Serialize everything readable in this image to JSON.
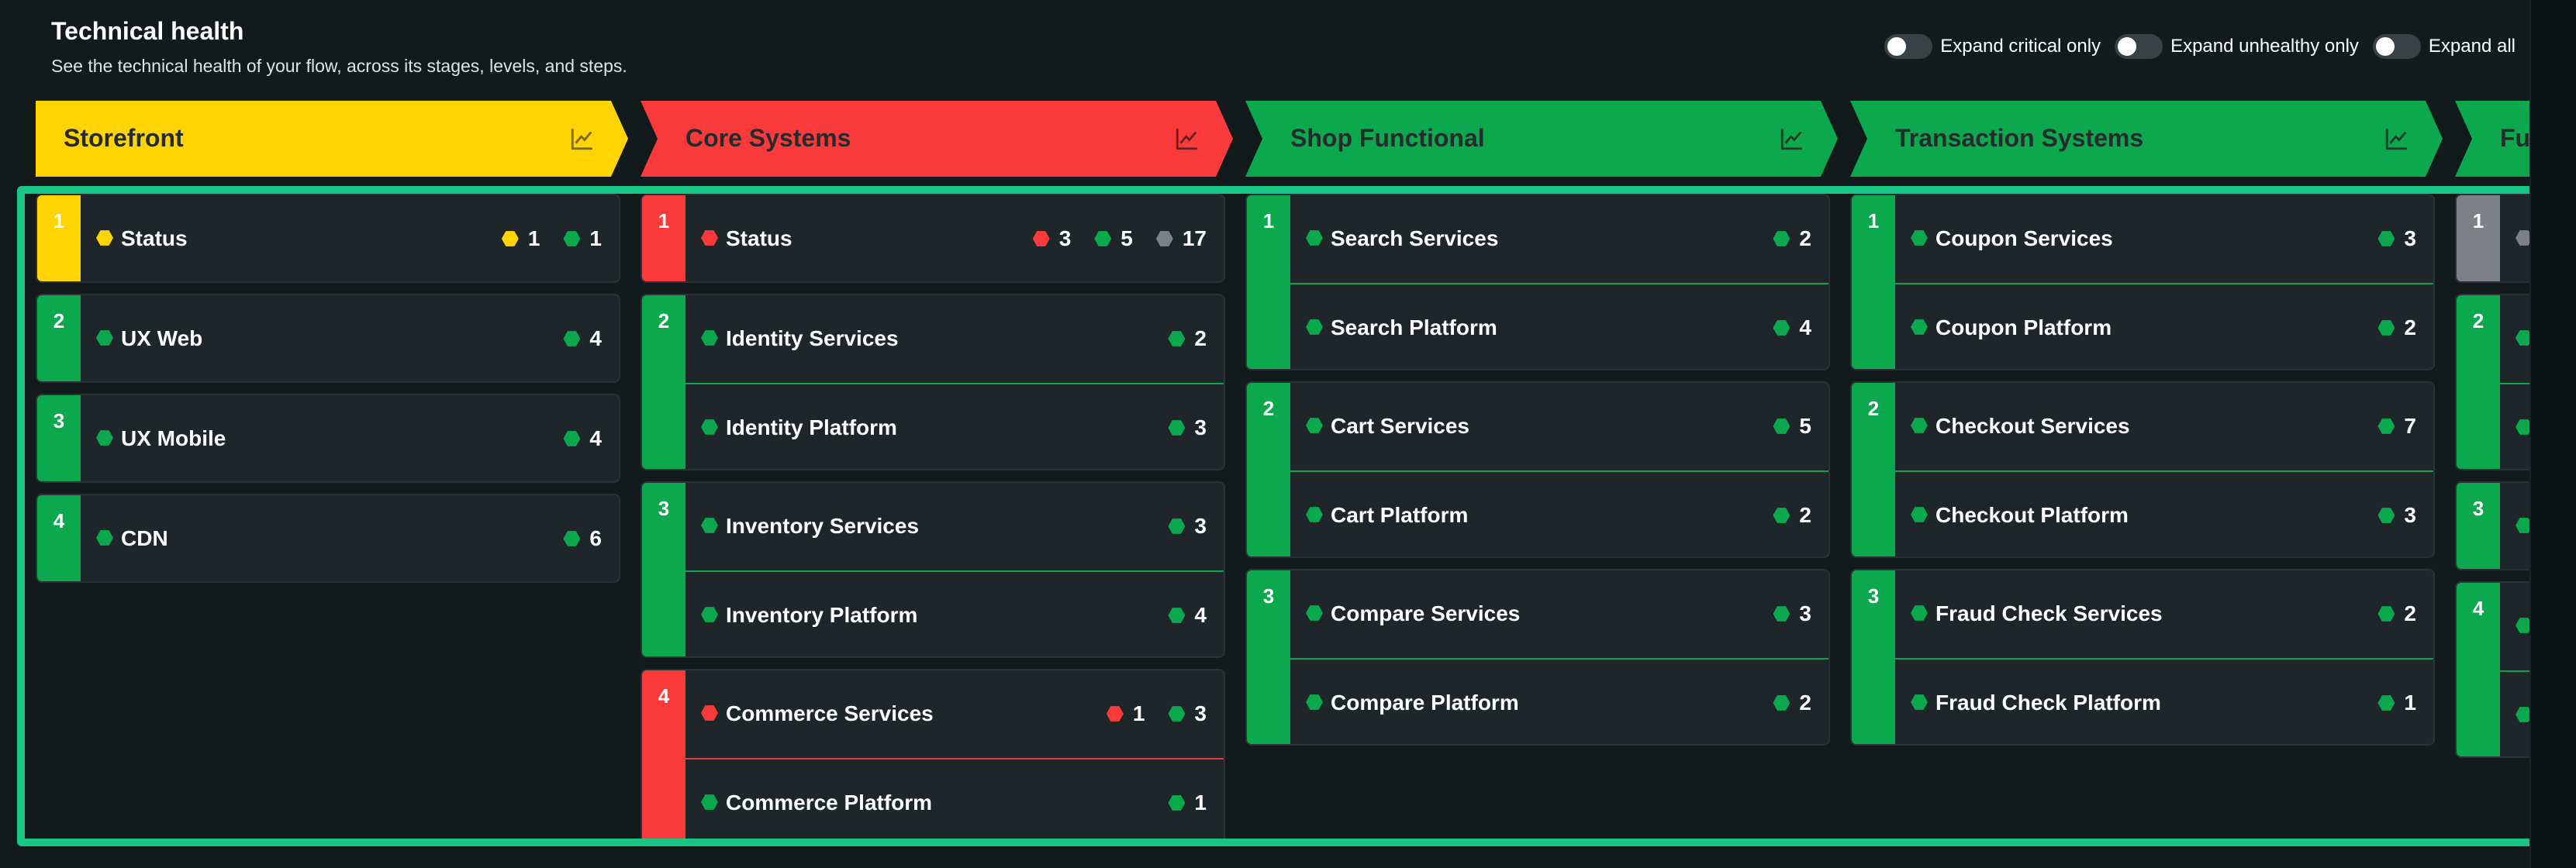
{
  "header": {
    "title": "Technical health",
    "subtitle": "See the technical health of your flow, across its stages, levels, and steps."
  },
  "toggles": [
    {
      "label": "Expand critical only"
    },
    {
      "label": "Expand unhealthy only"
    },
    {
      "label": "Expand all"
    }
  ],
  "colors": {
    "yellow": "#ffd400",
    "red": "#fb3b3b",
    "green": "#0ba84d",
    "gray": "#7d8185",
    "accent_frame": "#17c685"
  },
  "stages": [
    {
      "name": "Storefront",
      "color": "yellow",
      "levels": [
        {
          "number": "1",
          "color": "yellow",
          "steps": [
            {
              "name": "Status",
              "status": "yellow",
              "counts": [
                {
                  "color": "yellow",
                  "value": "1"
                },
                {
                  "color": "green",
                  "value": "1"
                }
              ]
            }
          ]
        },
        {
          "number": "2",
          "color": "green",
          "steps": [
            {
              "name": "UX Web",
              "status": "green",
              "counts": [
                {
                  "color": "green",
                  "value": "4"
                }
              ]
            }
          ]
        },
        {
          "number": "3",
          "color": "green",
          "steps": [
            {
              "name": "UX Mobile",
              "status": "green",
              "counts": [
                {
                  "color": "green",
                  "value": "4"
                }
              ]
            }
          ]
        },
        {
          "number": "4",
          "color": "green",
          "steps": [
            {
              "name": "CDN",
              "status": "green",
              "counts": [
                {
                  "color": "green",
                  "value": "6"
                }
              ]
            }
          ]
        }
      ]
    },
    {
      "name": "Core Systems",
      "color": "red",
      "levels": [
        {
          "number": "1",
          "color": "red",
          "steps": [
            {
              "name": "Status",
              "status": "red",
              "counts": [
                {
                  "color": "red",
                  "value": "3"
                },
                {
                  "color": "green",
                  "value": "5"
                },
                {
                  "color": "gray",
                  "value": "17"
                }
              ]
            }
          ]
        },
        {
          "number": "2",
          "color": "green",
          "steps": [
            {
              "name": "Identity Services",
              "status": "green",
              "counts": [
                {
                  "color": "green",
                  "value": "2"
                }
              ]
            },
            {
              "name": "Identity Platform",
              "status": "green",
              "counts": [
                {
                  "color": "green",
                  "value": "3"
                }
              ]
            }
          ]
        },
        {
          "number": "3",
          "color": "green",
          "steps": [
            {
              "name": "Inventory Services",
              "status": "green",
              "counts": [
                {
                  "color": "green",
                  "value": "3"
                }
              ]
            },
            {
              "name": "Inventory Platform",
              "status": "green",
              "counts": [
                {
                  "color": "green",
                  "value": "4"
                }
              ]
            }
          ]
        },
        {
          "number": "4",
          "color": "red",
          "steps": [
            {
              "name": "Commerce Services",
              "status": "red",
              "counts": [
                {
                  "color": "red",
                  "value": "1"
                },
                {
                  "color": "green",
                  "value": "3"
                }
              ]
            },
            {
              "name": "Commerce Platform",
              "status": "green",
              "counts": [
                {
                  "color": "green",
                  "value": "1"
                }
              ]
            }
          ]
        }
      ]
    },
    {
      "name": "Shop Functional",
      "color": "green",
      "levels": [
        {
          "number": "1",
          "color": "green",
          "steps": [
            {
              "name": "Search Services",
              "status": "green",
              "counts": [
                {
                  "color": "green",
                  "value": "2"
                }
              ]
            },
            {
              "name": "Search Platform",
              "status": "green",
              "counts": [
                {
                  "color": "green",
                  "value": "4"
                }
              ]
            }
          ]
        },
        {
          "number": "2",
          "color": "green",
          "steps": [
            {
              "name": "Cart Services",
              "status": "green",
              "counts": [
                {
                  "color": "green",
                  "value": "5"
                }
              ]
            },
            {
              "name": "Cart Platform",
              "status": "green",
              "counts": [
                {
                  "color": "green",
                  "value": "2"
                }
              ]
            }
          ]
        },
        {
          "number": "3",
          "color": "green",
          "steps": [
            {
              "name": "Compare Services",
              "status": "green",
              "counts": [
                {
                  "color": "green",
                  "value": "3"
                }
              ]
            },
            {
              "name": "Compare Platform",
              "status": "green",
              "counts": [
                {
                  "color": "green",
                  "value": "2"
                }
              ]
            }
          ]
        }
      ]
    },
    {
      "name": "Transaction Systems",
      "color": "green",
      "levels": [
        {
          "number": "1",
          "color": "green",
          "steps": [
            {
              "name": "Coupon Services",
              "status": "green",
              "counts": [
                {
                  "color": "green",
                  "value": "3"
                }
              ]
            },
            {
              "name": "Coupon Platform",
              "status": "green",
              "counts": [
                {
                  "color": "green",
                  "value": "2"
                }
              ]
            }
          ]
        },
        {
          "number": "2",
          "color": "green",
          "steps": [
            {
              "name": "Checkout Services",
              "status": "green",
              "counts": [
                {
                  "color": "green",
                  "value": "7"
                }
              ]
            },
            {
              "name": "Checkout Platform",
              "status": "green",
              "counts": [
                {
                  "color": "green",
                  "value": "3"
                }
              ]
            }
          ]
        },
        {
          "number": "3",
          "color": "green",
          "steps": [
            {
              "name": "Fraud Check Services",
              "status": "green",
              "counts": [
                {
                  "color": "green",
                  "value": "2"
                }
              ]
            },
            {
              "name": "Fraud Check Platform",
              "status": "green",
              "counts": [
                {
                  "color": "green",
                  "value": "1"
                }
              ]
            }
          ]
        }
      ]
    },
    {
      "name": "Fulfi",
      "color": "green",
      "levels": [
        {
          "number": "1",
          "color": "gray",
          "steps": [
            {
              "name": "",
              "status": "gray",
              "counts": []
            }
          ]
        },
        {
          "number": "2",
          "color": "green",
          "steps": [
            {
              "name": "",
              "status": "green",
              "counts": []
            },
            {
              "name": "",
              "status": "green",
              "counts": []
            }
          ]
        },
        {
          "number": "3",
          "color": "green",
          "steps": [
            {
              "name": "",
              "status": "green",
              "counts": []
            }
          ]
        },
        {
          "number": "4",
          "color": "green",
          "steps": [
            {
              "name": "",
              "status": "green",
              "counts": []
            },
            {
              "name": "",
              "status": "green",
              "counts": []
            }
          ]
        }
      ]
    }
  ]
}
